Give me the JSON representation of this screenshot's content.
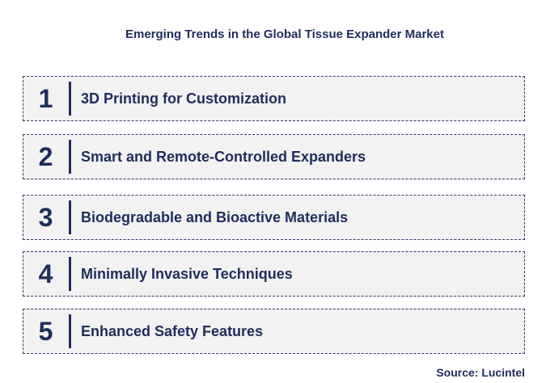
{
  "title": "Emerging Trends in the Global Tissue Expander Market",
  "trends": [
    {
      "number": "1",
      "label": "3D Printing for Customization"
    },
    {
      "number": "2",
      "label": "Smart and Remote-Controlled Expanders"
    },
    {
      "number": "3",
      "label": "Biodegradable and Bioactive Materials"
    },
    {
      "number": "4",
      "label": "Minimally Invasive Techniques"
    },
    {
      "number": "5",
      "label": "Enhanced Safety Features"
    }
  ],
  "source": "Source: Lucintel",
  "colors": {
    "text": "#1f2d5c",
    "box_background": "#f2f2f2",
    "box_border": "#2c3a63"
  }
}
